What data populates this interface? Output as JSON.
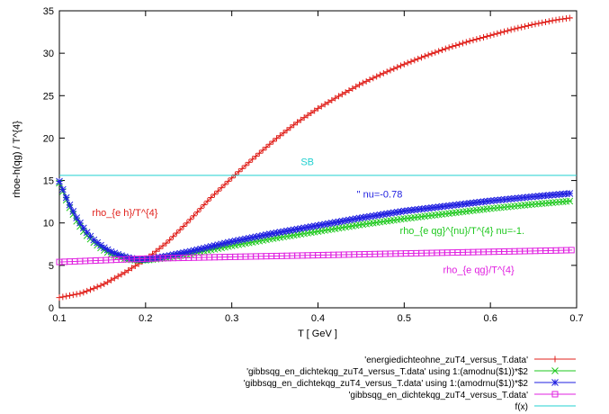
{
  "chart_data": {
    "type": "line",
    "title": "",
    "xlabel": "T [ GeV ]",
    "ylabel": "rhoe-h(qg) / T^{4}",
    "xlim": [
      0.1,
      0.7
    ],
    "ylim": [
      0,
      35
    ],
    "xticks": [
      "0.1",
      "0.2",
      "0.3",
      "0.4",
      "0.5",
      "0.6",
      "0.7"
    ],
    "xtick_values": [
      0.1,
      0.2,
      0.3,
      0.4,
      0.5,
      0.6,
      0.7
    ],
    "yticks": [
      "0",
      "5",
      "10",
      "15",
      "20",
      "25",
      "30",
      "35"
    ],
    "ytick_values": [
      0,
      5,
      10,
      15,
      20,
      25,
      30,
      35
    ],
    "grid": false,
    "legend_position": "bottom-right",
    "series": [
      {
        "name": "'energiedichteohne_zuT4_versus_T.data'",
        "color": "#e0201b",
        "marker": "plus",
        "x": [
          0.1,
          0.125,
          0.15,
          0.175,
          0.2,
          0.225,
          0.25,
          0.275,
          0.3,
          0.325,
          0.35,
          0.375,
          0.4,
          0.425,
          0.45,
          0.475,
          0.5,
          0.525,
          0.55,
          0.575,
          0.6,
          0.625,
          0.65,
          0.675,
          0.695
        ],
        "y": [
          1.2,
          1.7,
          2.7,
          4.1,
          5.7,
          7.7,
          10.2,
          12.9,
          15.3,
          17.6,
          19.8,
          21.8,
          23.5,
          25.0,
          26.4,
          27.6,
          28.7,
          29.7,
          30.6,
          31.4,
          32.1,
          32.8,
          33.4,
          33.9,
          34.2
        ]
      },
      {
        "name": "'gibbsqg_en_dichtekqg_zuT4_versus_T.data' using 1:(amodnu($1))*$2",
        "color": "#1ec81e",
        "marker": "cross",
        "x": [
          0.1,
          0.11,
          0.12,
          0.13,
          0.14,
          0.15,
          0.16,
          0.17,
          0.18,
          0.19,
          0.2,
          0.225,
          0.25,
          0.275,
          0.3,
          0.35,
          0.4,
          0.45,
          0.5,
          0.55,
          0.6,
          0.65,
          0.695
        ],
        "y": [
          14.7,
          12.2,
          10.2,
          8.7,
          7.7,
          6.9,
          6.3,
          6.0,
          5.7,
          5.6,
          5.6,
          5.9,
          6.3,
          6.8,
          7.3,
          8.2,
          9.0,
          9.8,
          10.5,
          11.1,
          11.7,
          12.2,
          12.6
        ]
      },
      {
        "name": "'gibbsqg_en_dichtekqg_zuT4_versus_T.data' using 1:(amodrnu($1))*$2",
        "color": "#1f1fe0",
        "marker": "star",
        "x": [
          0.1,
          0.11,
          0.12,
          0.13,
          0.14,
          0.15,
          0.16,
          0.17,
          0.18,
          0.19,
          0.2,
          0.225,
          0.25,
          0.275,
          0.3,
          0.35,
          0.4,
          0.45,
          0.5,
          0.55,
          0.6,
          0.65,
          0.695
        ],
        "y": [
          14.9,
          12.5,
          10.6,
          9.1,
          8.0,
          7.2,
          6.6,
          6.2,
          5.9,
          5.7,
          5.7,
          6.1,
          6.6,
          7.2,
          7.8,
          8.8,
          9.7,
          10.6,
          11.4,
          12.0,
          12.6,
          13.1,
          13.5
        ]
      },
      {
        "name": "'gibbsqg_en_dichtekqg_zuT4_versus_T.data'",
        "color": "#e020e0",
        "marker": "square",
        "x": [
          0.1,
          0.15,
          0.2,
          0.25,
          0.3,
          0.35,
          0.4,
          0.45,
          0.5,
          0.55,
          0.6,
          0.65,
          0.695
        ],
        "y": [
          5.4,
          5.6,
          5.8,
          5.9,
          6.0,
          6.1,
          6.2,
          6.3,
          6.4,
          6.5,
          6.6,
          6.7,
          6.8
        ]
      },
      {
        "name": "f(x)",
        "color": "#20d0d0",
        "marker": "none",
        "x": [
          0.1,
          0.7
        ],
        "y": [
          15.6,
          15.6
        ]
      }
    ],
    "annotations": [
      {
        "text": "rho_{e  h}/T^{4}",
        "color": "#e0201b",
        "x": 0.138,
        "y": 10.8
      },
      {
        "text": "\" nu=-0.78",
        "color": "#1f1fe0",
        "x": 0.445,
        "y": 13.0
      },
      {
        "text": "rho_{e  qg}^{nu}/T^{4} nu=-1.",
        "color": "#1ec81e",
        "x": 0.495,
        "y": 8.7
      },
      {
        "text": "rho_{e  qg}/T^{4}",
        "color": "#e020e0",
        "x": 0.545,
        "y": 4.1
      },
      {
        "text": "SB",
        "color": "#20d0d0",
        "x": 0.38,
        "y": 16.8
      }
    ]
  }
}
